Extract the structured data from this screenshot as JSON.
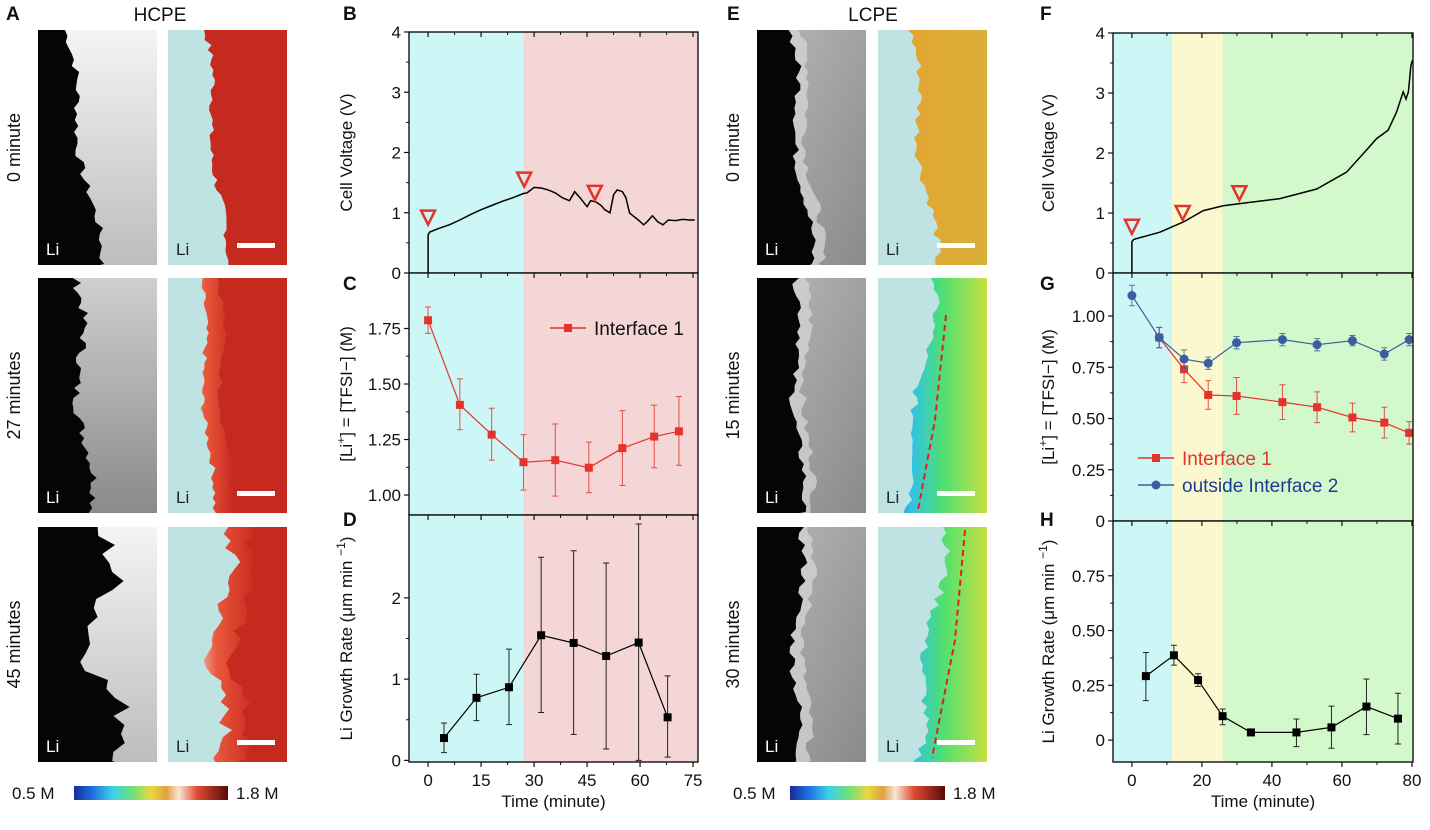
{
  "panels": {
    "A": "A",
    "B": "B",
    "C": "C",
    "D": "D",
    "E": "E",
    "F": "F",
    "G": "G",
    "H": "H"
  },
  "left_group": {
    "title": "HCPE",
    "rows": [
      "0 minute",
      "27 minutes",
      "45 minutes"
    ],
    "li_label": "Li",
    "colorbar": {
      "min": "0.5 M",
      "max": "1.8 M"
    }
  },
  "right_group": {
    "title": "LCPE",
    "rows": [
      "0 minute",
      "15 minutes",
      "30 minutes"
    ],
    "li_label": "Li",
    "colorbar": {
      "min": "0.5 M",
      "max": "1.8 M"
    }
  },
  "colors": {
    "cyan_region": "#cdf7f7",
    "pink_region": "#f5d6d6",
    "yellow_region": "#fbf8cf",
    "green_region": "#d3f8cb",
    "red": "#e3342b",
    "blue": "#3b5f9e",
    "legend_blue": "#1f3a93"
  },
  "chart_data": [
    {
      "panel": "B",
      "type": "line",
      "ylabel": {
        "pre": "Cell Voltage (V)",
        "sup": "",
        "post": ""
      },
      "xlabel": "",
      "xlim": [
        -5.4,
        76.4
      ],
      "ylim": [
        0,
        4
      ],
      "yticks": [
        0,
        1,
        2,
        3,
        4
      ],
      "ytick_labels": [
        "0",
        "1",
        "2",
        "3",
        "4"
      ],
      "xticks": [
        0,
        15,
        30,
        45,
        60,
        75
      ],
      "xtick_labels": [],
      "regions": [
        {
          "from": -5.4,
          "to": 27,
          "color": "#cdf7f7"
        },
        {
          "from": 27,
          "to": 76.4,
          "color": "#f5d6d6"
        }
      ],
      "annotations": [
        {
          "shape": "open-triangle-down",
          "x": 0,
          "y": 0.92
        },
        {
          "shape": "open-triangle-down",
          "x": 27.2,
          "y": 1.55
        },
        {
          "shape": "open-triangle-down",
          "x": 47.2,
          "y": 1.33
        }
      ],
      "series": [
        {
          "color": "#000000",
          "marker": null,
          "x": [
            0,
            0,
            0.5,
            3,
            6,
            9,
            12,
            15,
            18,
            21,
            24,
            27,
            28,
            30,
            32,
            34,
            36,
            38,
            40,
            41.5,
            43,
            45,
            46,
            47.5,
            49,
            50,
            51.5,
            52.5,
            53.5,
            55,
            56,
            57,
            58,
            59.5,
            61,
            62,
            63.5,
            65,
            66.5,
            68,
            70,
            72,
            74,
            75.5
          ],
          "y": [
            0,
            0.63,
            0.68,
            0.74,
            0.8,
            0.88,
            0.97,
            1.05,
            1.12,
            1.19,
            1.25,
            1.32,
            1.33,
            1.42,
            1.41,
            1.38,
            1.33,
            1.25,
            1.2,
            1.35,
            1.25,
            1.1,
            1.2,
            1.18,
            1.12,
            1.05,
            1.0,
            1.3,
            1.38,
            1.35,
            1.25,
            1.0,
            0.95,
            0.88,
            0.8,
            0.85,
            0.95,
            0.85,
            0.8,
            0.88,
            0.87,
            0.89,
            0.88,
            0.88
          ]
        }
      ]
    },
    {
      "panel": "C",
      "type": "line",
      "ylabel": {
        "pre": "[Li",
        "sup": "+",
        "post": "] = [TFSI−] (M)"
      },
      "xlabel": "",
      "xlim": [
        -5.4,
        76.4
      ],
      "ylim": [
        0.91,
        2.0
      ],
      "yticks": [
        1.0,
        1.25,
        1.5,
        1.75
      ],
      "ytick_labels": [
        "1.00",
        "1.25",
        "1.50",
        "1.75"
      ],
      "xticks": [
        0,
        15,
        30,
        45,
        60,
        75
      ],
      "xtick_labels": [],
      "regions": [
        {
          "from": -5.4,
          "to": 27,
          "color": "#cdf7f7"
        },
        {
          "from": 27,
          "to": 76.4,
          "color": "#f5d6d6"
        }
      ],
      "legend": {
        "position": "top-right",
        "entries": [
          "Interface 1"
        ]
      },
      "series": [
        {
          "name": "Interface 1",
          "color": "#e3342b",
          "marker": "square",
          "x": [
            0,
            9,
            18,
            27,
            36,
            45.5,
            55,
            64,
            71
          ],
          "y": [
            1.787,
            1.406,
            1.272,
            1.148,
            1.157,
            1.123,
            1.211,
            1.263,
            1.287
          ],
          "y_err_upper": [
            1.847,
            1.523,
            1.391,
            1.272,
            1.32,
            1.238,
            1.38,
            1.405,
            1.444
          ],
          "y_err_lower": [
            1.728,
            1.294,
            1.157,
            1.022,
            0.995,
            1.01,
            1.043,
            1.123,
            1.134
          ]
        }
      ]
    },
    {
      "panel": "D",
      "type": "line",
      "ylabel": {
        "pre": "Li Growth Rate (μm min ",
        "sup": "−1",
        "post": ")"
      },
      "xlabel": "Time (minute)",
      "xlim": [
        -5.4,
        76.4
      ],
      "ylim": [
        -0.02,
        3.02
      ],
      "yticks": [
        0,
        1,
        2
      ],
      "ytick_labels": [
        "0",
        "1",
        "2"
      ],
      "xticks": [
        0,
        15,
        30,
        45,
        60,
        75
      ],
      "xtick_labels": [
        "0",
        "15",
        "30",
        "45",
        "60",
        "75"
      ],
      "regions": [
        {
          "from": -5.4,
          "to": 27,
          "color": "#cdf7f7"
        },
        {
          "from": 27,
          "to": 76.4,
          "color": "#f5d6d6"
        }
      ],
      "series": [
        {
          "color": "#000000",
          "marker": "square",
          "x": [
            4.5,
            13.7,
            22.9,
            32,
            41.2,
            50.4,
            59.6,
            67.8
          ],
          "y": [
            0.275,
            0.77,
            0.9,
            1.54,
            1.445,
            1.285,
            1.45,
            0.53
          ],
          "y_err_upper": [
            0.46,
            1.06,
            1.37,
            2.5,
            2.58,
            2.43,
            2.91,
            1.04
          ],
          "y_err_lower": [
            0.095,
            0.49,
            0.44,
            0.59,
            0.32,
            0.14,
            0.0,
            0.04
          ]
        }
      ]
    },
    {
      "panel": "F",
      "type": "line",
      "ylabel": {
        "pre": "Cell Voltage (V)",
        "sup": "",
        "post": ""
      },
      "xlabel": "",
      "xlim": [
        -5.4,
        80.3
      ],
      "ylim": [
        0,
        4
      ],
      "yticks": [
        0,
        1,
        2,
        3,
        4
      ],
      "ytick_labels": [
        "0",
        "1",
        "2",
        "3",
        "4"
      ],
      "xticks": [
        0,
        20,
        40,
        60,
        80
      ],
      "xtick_labels": [],
      "regions": [
        {
          "from": -5.4,
          "to": 11.5,
          "color": "#cdf7f7"
        },
        {
          "from": 11.5,
          "to": 25.9,
          "color": "#fbf8cf"
        },
        {
          "from": 25.9,
          "to": 80.3,
          "color": "#d3f8cb"
        }
      ],
      "annotations": [
        {
          "shape": "open-triangle-down",
          "x": 0,
          "y": 0.77
        },
        {
          "shape": "open-triangle-down",
          "x": 14.5,
          "y": 1.0
        },
        {
          "shape": "open-triangle-down",
          "x": 30.7,
          "y": 1.33
        }
      ],
      "series": [
        {
          "color": "#000000",
          "marker": null,
          "x": [
            0,
            0,
            0.5,
            8,
            14.7,
            20.4,
            26.1,
            32.8,
            42.3,
            52.8,
            61.3,
            66.1,
            69.9,
            73.2,
            75.6,
            77.5,
            78.3,
            79,
            79.7,
            80.2
          ],
          "y": [
            0,
            0.52,
            0.56,
            0.68,
            0.85,
            1.04,
            1.12,
            1.17,
            1.24,
            1.4,
            1.68,
            1.99,
            2.24,
            2.38,
            2.68,
            3.02,
            2.9,
            3.02,
            3.46,
            3.55
          ]
        }
      ]
    },
    {
      "panel": "G",
      "type": "line",
      "ylabel": {
        "pre": "[Li",
        "sup": "+",
        "post": "] = [TFSI−] (M)"
      },
      "xlabel": "",
      "xlim": [
        -5.4,
        80.3
      ],
      "ylim": [
        0,
        1.21
      ],
      "yticks": [
        0,
        0.25,
        0.5,
        0.75,
        1.0
      ],
      "ytick_labels": [
        "0",
        "0.25",
        "0.50",
        "0.75",
        "1.00"
      ],
      "xticks": [
        0,
        20,
        40,
        60,
        80
      ],
      "xtick_labels": [],
      "regions": [
        {
          "from": -5.4,
          "to": 11.5,
          "color": "#cdf7f7"
        },
        {
          "from": 11.5,
          "to": 25.9,
          "color": "#fbf8cf"
        },
        {
          "from": 25.9,
          "to": 80.3,
          "color": "#d3f8cb"
        }
      ],
      "legend": {
        "position": "bottom-left",
        "entries": [
          "Interface 1",
          "outside Interface 2"
        ]
      },
      "series": [
        {
          "name": "Interface 1",
          "color": "#e3342b",
          "marker": "square",
          "x": [
            7.8,
            14.9,
            21.8,
            29.9,
            43,
            52.9,
            63,
            72.1,
            79.2
          ],
          "y": [
            0.895,
            0.74,
            0.615,
            0.61,
            0.58,
            0.555,
            0.505,
            0.48,
            0.43
          ],
          "y_err_upper": [
            0.945,
            0.805,
            0.685,
            0.7,
            0.665,
            0.63,
            0.575,
            0.555,
            0.485
          ],
          "y_err_lower": [
            0.845,
            0.675,
            0.545,
            0.52,
            0.495,
            0.48,
            0.435,
            0.405,
            0.375
          ]
        },
        {
          "name": "outside Interface 2",
          "color": "#3b5f9e",
          "marker": "circle",
          "x": [
            0,
            7.8,
            14.9,
            21.8,
            29.9,
            43,
            52.9,
            63,
            72.1,
            79.2
          ],
          "y": [
            1.1,
            0.895,
            0.79,
            0.77,
            0.87,
            0.885,
            0.86,
            0.88,
            0.815,
            0.885
          ],
          "y_err_upper": [
            1.15,
            0.945,
            0.835,
            0.8,
            0.9,
            0.915,
            0.89,
            0.905,
            0.845,
            0.915
          ],
          "y_err_lower": [
            1.05,
            0.845,
            0.745,
            0.74,
            0.84,
            0.855,
            0.83,
            0.855,
            0.785,
            0.855
          ]
        }
      ]
    },
    {
      "panel": "H",
      "type": "line",
      "ylabel": {
        "pre": "Li Growth Rate (μm min ",
        "sup": "−1",
        "post": ")"
      },
      "xlabel": "Time (minute)",
      "xlim": [
        -5.4,
        80.3
      ],
      "ylim": [
        -0.1,
        1.0
      ],
      "yticks": [
        0,
        0.25,
        0.5,
        0.75
      ],
      "ytick_labels": [
        "0",
        "0.25",
        "0.50",
        "0.75"
      ],
      "xticks": [
        0,
        20,
        40,
        60,
        80
      ],
      "xtick_labels": [
        "0",
        "20",
        "40",
        "60",
        "80"
      ],
      "regions": [
        {
          "from": -5.4,
          "to": 11.5,
          "color": "#cdf7f7"
        },
        {
          "from": 11.5,
          "to": 25.9,
          "color": "#fbf8cf"
        },
        {
          "from": 25.9,
          "to": 80.3,
          "color": "#d3f8cb"
        }
      ],
      "series": [
        {
          "color": "#000000",
          "marker": "square",
          "x": [
            4,
            12,
            18.9,
            25.9,
            34,
            47,
            57,
            67,
            76
          ],
          "y": [
            0.292,
            0.387,
            0.274,
            0.109,
            0.035,
            0.035,
            0.058,
            0.153,
            0.098
          ],
          "y_err_upper": [
            0.4,
            0.433,
            0.303,
            0.142,
            0.045,
            0.096,
            0.155,
            0.279,
            0.214
          ],
          "y_err_lower": [
            0.18,
            0.342,
            0.245,
            0.07,
            0.025,
            -0.03,
            -0.037,
            0.025,
            -0.018
          ]
        }
      ]
    }
  ]
}
